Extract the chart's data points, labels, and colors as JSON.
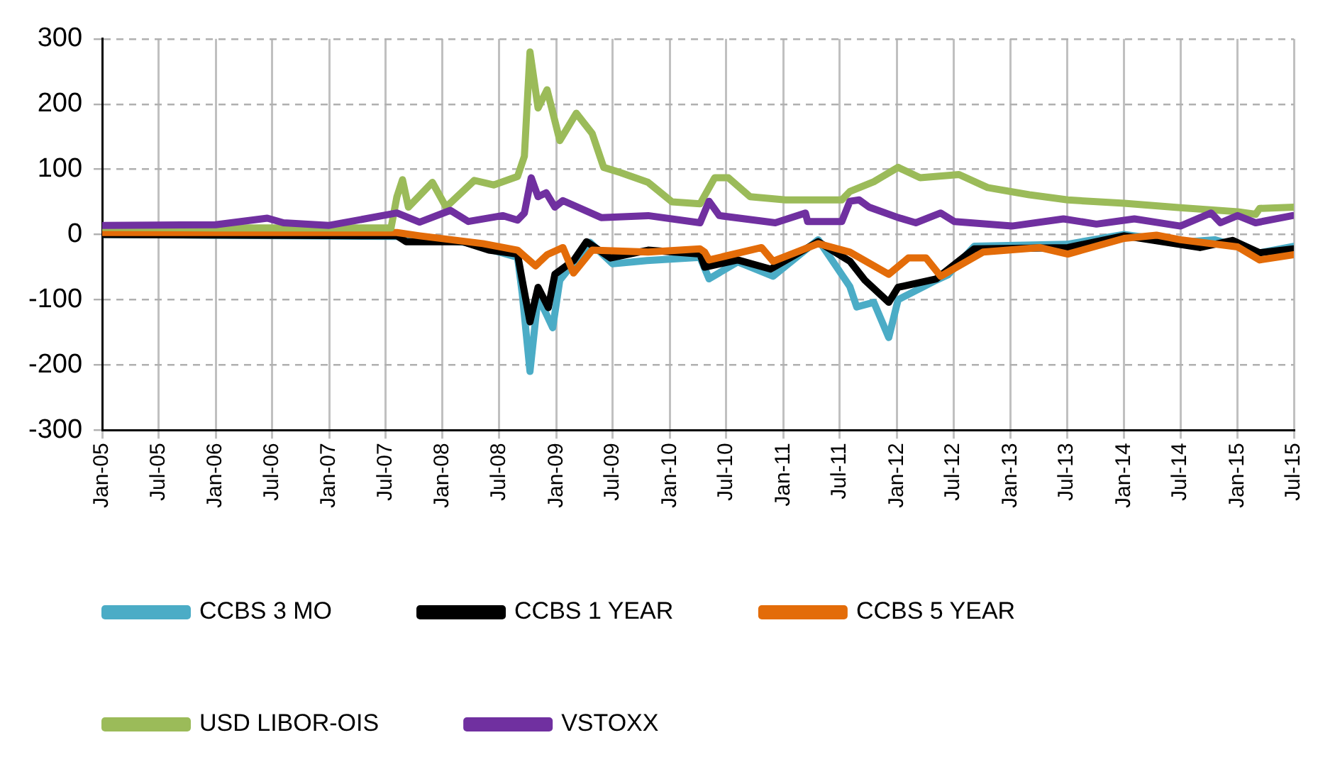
{
  "chart_data": {
    "type": "line",
    "xlim": [
      "2005-01-01",
      "2015-07-01"
    ],
    "xticks": [
      {
        "value": "2005-01",
        "label": "Jan-05"
      },
      {
        "value": "2005-07",
        "label": "Jul-05"
      },
      {
        "value": "2006-01",
        "label": "Jan-06"
      },
      {
        "value": "2006-07",
        "label": "Jul-06"
      },
      {
        "value": "2007-01",
        "label": "Jan-07"
      },
      {
        "value": "2007-07",
        "label": "Jul-07"
      },
      {
        "value": "2008-01",
        "label": "Jan-08"
      },
      {
        "value": "2008-07",
        "label": "Jul-08"
      },
      {
        "value": "2009-01",
        "label": "Jan-09"
      },
      {
        "value": "2009-07",
        "label": "Jul-09"
      },
      {
        "value": "2010-01",
        "label": "Jan-10"
      },
      {
        "value": "2010-07",
        "label": "Jul-10"
      },
      {
        "value": "2011-01",
        "label": "Jan-11"
      },
      {
        "value": "2011-07",
        "label": "Jul-11"
      },
      {
        "value": "2012-01",
        "label": "Jan-12"
      },
      {
        "value": "2012-07",
        "label": "Jul-12"
      },
      {
        "value": "2013-01",
        "label": "Jan-13"
      },
      {
        "value": "2013-07",
        "label": "Jul-13"
      },
      {
        "value": "2014-01",
        "label": "Jan-14"
      },
      {
        "value": "2014-07",
        "label": "Jul-14"
      },
      {
        "value": "2015-01",
        "label": "Jan-15"
      },
      {
        "value": "2015-07",
        "label": "Jul-15"
      }
    ],
    "ylim": [
      -300,
      300
    ],
    "yticks": [
      -300,
      -200,
      -100,
      0,
      100,
      200,
      300
    ],
    "grid": true,
    "legend": "bottom",
    "marker": "none",
    "line_style": "solid",
    "series": [
      {
        "name": "CCBS 3 MO",
        "color": "#4bacc6",
        "x": [
          "2005-01-01",
          "2007-08-07",
          "2008-03-13",
          "2008-08-29",
          "2008-09-13",
          "2008-10-08",
          "2008-11-03",
          "2008-12-20",
          "2009-01-12",
          "2009-04-19",
          "2009-07-01",
          "2009-10-19",
          "2010-04-08",
          "2010-05-07",
          "2010-08-07",
          "2010-11-29",
          "2011-04-23",
          "2011-08-03",
          "2011-08-25",
          "2011-10-19",
          "2011-12-06",
          "2012-01-05",
          "2012-05-07",
          "2012-06-13",
          "2012-09-06",
          "2013-07-01",
          "2014-01-01",
          "2014-07-01",
          "2014-10-19",
          "2015-03-13",
          "2015-07-01"
        ],
        "values": [
          0,
          -3,
          -12,
          -35,
          -90,
          -210,
          -95,
          -143,
          -70,
          -12,
          -45,
          -40,
          -35,
          -68,
          -42,
          -64,
          -8,
          -80,
          -111,
          -104,
          -158,
          -100,
          -70,
          -62,
          -18,
          -15,
          0,
          -12,
          -8,
          -28,
          -18
        ]
      },
      {
        "name": "CCBS 1 YEAR",
        "color": "#000000",
        "x": [
          "2005-01-01",
          "2007-08-07",
          "2007-09-06",
          "2008-03-06",
          "2008-05-29",
          "2008-08-29",
          "2008-09-13",
          "2008-10-08",
          "2008-11-03",
          "2008-12-06",
          "2008-12-27",
          "2009-02-25",
          "2009-04-08",
          "2009-06-24",
          "2009-10-23",
          "2010-04-08",
          "2010-04-23",
          "2010-08-07",
          "2010-11-21",
          "2011-04-23",
          "2011-08-03",
          "2011-09-20",
          "2011-12-06",
          "2012-01-05",
          "2012-05-07",
          "2012-09-06",
          "2013-07-04",
          "2014-01-01",
          "2014-09-02",
          "2014-12-16",
          "2015-03-13",
          "2015-07-01"
        ],
        "values": [
          0,
          -2,
          -11,
          -11,
          -24,
          -30,
          -70,
          -134,
          -81,
          -112,
          -61,
          -40,
          -11,
          -36,
          -24,
          -30,
          -50,
          -39,
          -53,
          -11,
          -41,
          -70,
          -104,
          -81,
          -68,
          -22,
          -20,
          -2,
          -20,
          -9,
          -28,
          -22
        ]
      },
      {
        "name": "CCBS 5 YEAR",
        "color": "#e36c09",
        "x": [
          "2005-01-01",
          "2007-08-07",
          "2007-10-19",
          "2008-05-10",
          "2008-08-29",
          "2008-10-26",
          "2008-12-02",
          "2009-01-22",
          "2009-02-25",
          "2009-04-26",
          "2009-10-23",
          "2010-04-08",
          "2010-04-23",
          "2010-05-07",
          "2010-10-23",
          "2010-11-29",
          "2011-04-23",
          "2011-08-03",
          "2011-12-06",
          "2012-02-07",
          "2012-04-04",
          "2012-05-21",
          "2012-10-04",
          "2013-04-04",
          "2013-07-04",
          "2014-01-01",
          "2014-04-15",
          "2014-07-01",
          "2015-01-01",
          "2015-03-13",
          "2015-07-01"
        ],
        "values": [
          3,
          3,
          -2,
          -14,
          -24,
          -48,
          -31,
          -20,
          -59,
          -24,
          -27,
          -22,
          -27,
          -39,
          -20,
          -41,
          -14,
          -27,
          -61,
          -36,
          -36,
          -64,
          -27,
          -20,
          -30,
          -6,
          -1,
          -8,
          -19,
          -39,
          -31
        ]
      },
      {
        "name": "USD LIBOR-OIS",
        "color": "#9bbb59",
        "x": [
          "2005-01-01",
          "2006-01-01",
          "2007-01-01",
          "2007-07-19",
          "2007-08-07",
          "2007-08-25",
          "2007-09-13",
          "2007-11-29",
          "2008-01-12",
          "2008-04-12",
          "2008-06-13",
          "2008-08-29",
          "2008-09-20",
          "2008-10-08",
          "2008-11-03",
          "2008-12-02",
          "2009-01-12",
          "2009-03-06",
          "2009-04-26",
          "2009-06-02",
          "2009-07-26",
          "2009-10-23",
          "2010-01-08",
          "2010-04-08",
          "2010-05-25",
          "2010-07-08",
          "2010-09-16",
          "2011-01-08",
          "2011-07-08",
          "2011-08-03",
          "2011-10-19",
          "2012-01-05",
          "2012-03-16",
          "2012-07-19",
          "2012-10-19",
          "2013-03-02",
          "2013-07-04",
          "2014-01-01",
          "2014-07-01",
          "2015-01-01",
          "2015-02-28",
          "2015-03-13",
          "2015-07-01"
        ],
        "values": [
          11,
          10,
          10,
          10,
          58,
          84,
          42,
          80,
          42,
          83,
          76,
          89,
          120,
          280,
          194,
          222,
          144,
          186,
          155,
          103,
          95,
          80,
          50,
          47,
          87,
          87,
          58,
          53,
          53,
          66,
          81,
          103,
          87,
          92,
          72,
          61,
          53,
          48,
          41,
          35,
          31,
          40,
          42
        ]
      },
      {
        "name": "VSTOXX",
        "color": "#7030a0",
        "x": [
          "2005-01-01",
          "2006-01-01",
          "2006-06-16",
          "2006-08-07",
          "2007-01-01",
          "2007-08-07",
          "2007-10-19",
          "2008-01-26",
          "2008-03-24",
          "2008-07-12",
          "2008-08-29",
          "2008-09-20",
          "2008-10-12",
          "2008-11-03",
          "2008-11-29",
          "2008-12-27",
          "2009-01-22",
          "2009-05-25",
          "2009-10-23",
          "2010-04-08",
          "2010-05-07",
          "2010-06-09",
          "2010-12-06",
          "2011-03-13",
          "2011-03-20",
          "2011-07-08",
          "2011-08-03",
          "2011-09-02",
          "2011-10-04",
          "2012-01-05",
          "2012-03-02",
          "2012-05-21",
          "2012-07-04",
          "2013-01-05",
          "2013-06-20",
          "2013-10-04",
          "2014-02-03",
          "2014-07-01",
          "2014-10-08",
          "2014-11-07",
          "2015-01-01",
          "2015-02-28",
          "2015-06-27"
        ],
        "values": [
          14,
          15,
          25,
          18,
          14,
          33,
          19,
          37,
          20,
          29,
          22,
          33,
          87,
          58,
          64,
          42,
          52,
          26,
          29,
          18,
          51,
          29,
          18,
          33,
          20,
          20,
          51,
          53,
          42,
          26,
          18,
          33,
          20,
          13,
          24,
          16,
          24,
          13,
          33,
          18,
          29,
          18,
          29
        ]
      }
    ]
  }
}
